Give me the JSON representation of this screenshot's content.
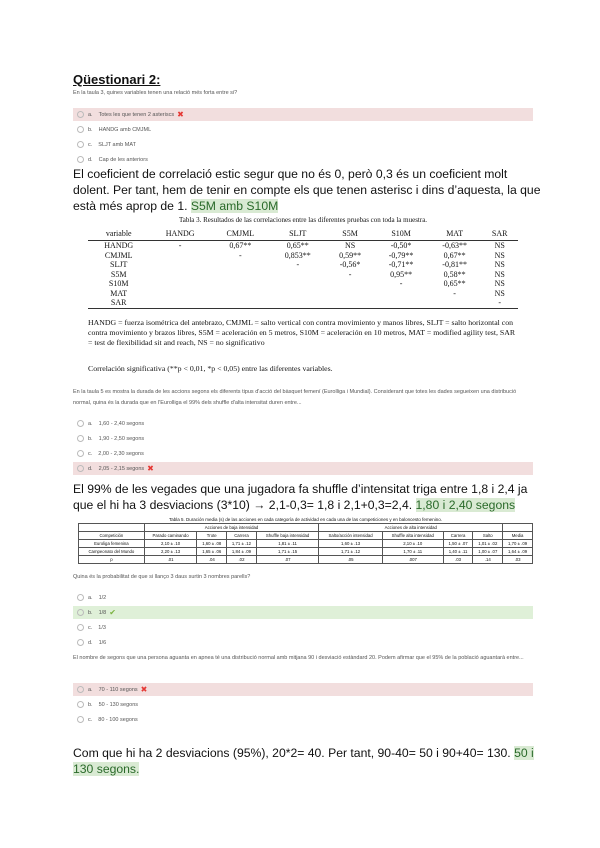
{
  "title": "Qüestionari 2:",
  "q1": {
    "text": "En la taula 3, quines variables tenen una relació més forta entre si?",
    "options": [
      {
        "letter": "a.",
        "text": "Totes les que tenen 2 asteriscs",
        "state": "wrong"
      },
      {
        "letter": "b.",
        "text": "HANDG amb CMJML",
        "state": ""
      },
      {
        "letter": "c.",
        "text": "SLJT amb MAT",
        "state": ""
      },
      {
        "letter": "d.",
        "text": "Cap de les anteriors",
        "state": ""
      }
    ]
  },
  "p1": {
    "text": "El coeficient de correlació estic segur que no és 0, però 0,3 és un coeficient molt dolent. Per tant, hem de tenir en compte els que tenen asterisc i dins d’aquesta, la que està més aprop de 1. ",
    "highlight": "S5M amb S10M"
  },
  "table1": {
    "caption": "Tabla 3. Resultados de las correlaciones entre las diferentes pruebas con toda la muestra.",
    "headers": [
      "variable",
      "HANDG",
      "CMJML",
      "SLJT",
      "S5M",
      "S10M",
      "MAT",
      "SAR"
    ],
    "rows": [
      [
        "HANDG",
        "-",
        "0,67**",
        "0,65**",
        "NS",
        "-0,50*",
        "-0,63**",
        "NS"
      ],
      [
        "CMJML",
        "",
        "-",
        "0,853**",
        "0,59**",
        "-0,79**",
        "0,67**",
        "NS"
      ],
      [
        "SLJT",
        "",
        "",
        "-",
        "-0,56*",
        "-0,71**",
        "-0,81**",
        "NS"
      ],
      [
        "S5M",
        "",
        "",
        "",
        "-",
        "0,95**",
        "0,58**",
        "NS"
      ],
      [
        "S10M",
        "",
        "",
        "",
        "",
        "-",
        "0,65**",
        "NS"
      ],
      [
        "MAT",
        "",
        "",
        "",
        "",
        "",
        "-",
        "NS"
      ],
      [
        "SAR",
        "",
        "",
        "",
        "",
        "",
        "",
        "-"
      ]
    ],
    "notes": "HANDG = fuerza isométrica del antebrazo, CMJML = salto vertical con contra movimiento y manos libres, SLJT = salto horizontal con contra movimiento y brazos libres, S5M = aceleración en 5 metros, S10M = aceleración en 10 metros, MAT = modified agility test, SAR = test de flexibilidad sit and reach, NS = no significativo",
    "significance": "Correlación significativa (**p < 0,01, *p < 0,05) entre las diferentes variables."
  },
  "q2": {
    "text": "En la taula 5 es mostra la durada de les accions segons els diferents tipus d'acció del bàsquet femení (Eurolliga i Mundial). Considerant que totes les dades segueixen una distribució normal, quina és la durada que en l'Eurolliga el 99% dels shuffle d'alta intensitat duren entre...",
    "options": [
      {
        "letter": "a.",
        "text": "1,60 - 2,40 segons",
        "state": ""
      },
      {
        "letter": "b.",
        "text": "1,90 - 2,50 segons",
        "state": ""
      },
      {
        "letter": "c.",
        "text": "2,00 - 2,30 segons",
        "state": ""
      },
      {
        "letter": "d.",
        "text": "2,05 - 2,15 segons",
        "state": "wrong"
      }
    ]
  },
  "p2": {
    "text": "El 99% de les vegades que una jugadora fa shuffle d’intensitat triga entre 1,8 i 2,4 ja que el hi ha 3 desviacions (3*10) → 2,1-0,3= 1,8 i 2,1+0,3=2,4. ",
    "highlight": "1,80 i 2,40 segons"
  },
  "table2": {
    "caption": "Tabla 5. Duración media (s) de las acciones en cada categoría de actividad en cada una de las competiciones y en baloncesto femenino.",
    "group1": "Acciones de baja intensidad",
    "group2": "Acciones de alta intensidad",
    "headers": [
      "Competición",
      "Parado caminando",
      "Trote",
      "Carrera",
      "Shuffle baja intensidad",
      "Salto/acción intensidad",
      "Shuffle alta intensidad",
      "Carrera",
      "Salto",
      "Media"
    ],
    "rows": [
      [
        "Euroliga femenina",
        "2,10 ± .10",
        "1,60 ± .08",
        "1,71 ± .12",
        "1,81 ± .11",
        "1,60 ± .13",
        "2,10 ± .10",
        "1,50 ± .07",
        "1,01 ± .02",
        "1,70 ± .09"
      ],
      [
        "Campeonato del Mundo",
        "2,20 ± .13",
        "1,65 ± .06",
        "1,84 ± .09",
        "1,71 ± .15",
        "1,71 ± .12",
        "1,70 ± .11",
        "1,40 ± .11",
        "1,00 ± .07",
        "1,64 ± .09"
      ],
      [
        "p",
        ".01",
        ".04",
        ".02",
        ".07",
        ".05",
        ".007",
        ".03",
        ".14",
        ".03"
      ]
    ]
  },
  "q3": {
    "text": "Quina és la probabilitat de que si llanço 3 daus surtin 3 nombres parells?",
    "options": [
      {
        "letter": "a.",
        "text": "1/2",
        "state": ""
      },
      {
        "letter": "b.",
        "text": "1/8",
        "state": "right"
      },
      {
        "letter": "c.",
        "text": "1/3",
        "state": ""
      },
      {
        "letter": "d.",
        "text": "1/6",
        "state": ""
      }
    ]
  },
  "q4": {
    "text": "El nombre de segons que una persona aguanta en apnea té una distribució normal amb mitjana 90 i desviació estàndard 20. Podem afirmar que el 95% de la població aguantarà entre...",
    "options": [
      {
        "letter": "a.",
        "text": "70 - 110 segons",
        "state": "wrong"
      },
      {
        "letter": "b.",
        "text": "50 - 130 segons",
        "state": ""
      },
      {
        "letter": "c.",
        "text": "80 - 100 segons",
        "state": ""
      }
    ]
  },
  "p3": {
    "text": "Com que hi ha 2 desviacions (95%), 20*2= 40. Per tant, 90-40= 50 i 90+40= 130. ",
    "highlight": "50 i 130 segons."
  },
  "colors": {
    "wrong_bg": "#f2dede",
    "right_bg": "#dff0d8",
    "highlight": "#d9ead3",
    "wrong_mark": "#e53935",
    "right_mark": "#7cb342"
  }
}
